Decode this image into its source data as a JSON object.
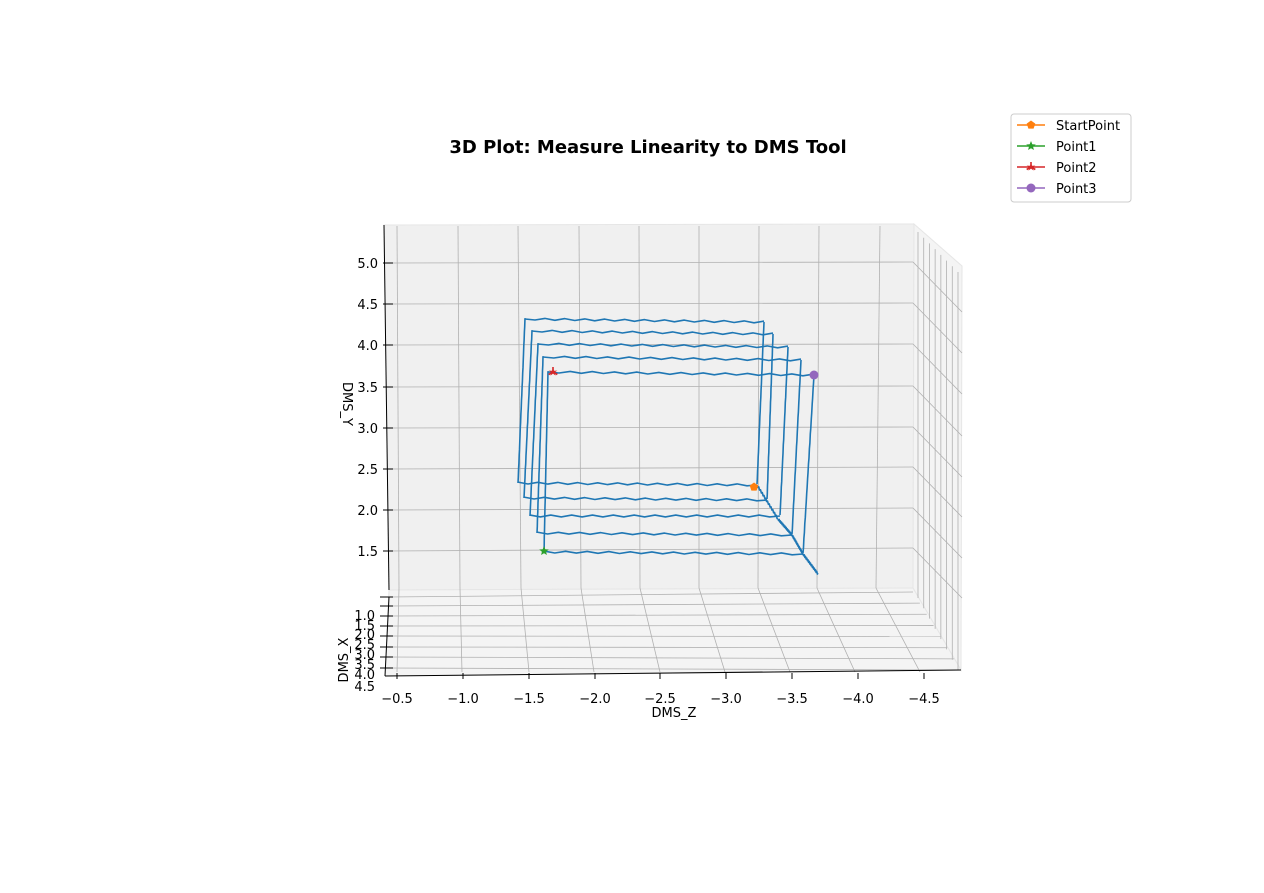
{
  "chart_data": {
    "type": "line-3d",
    "title": "3D Plot: Measure Linearity to DMS Tool",
    "xlabel": "DMS_Z",
    "ylabel": "DMS_Y",
    "zlabel": "DMS_X",
    "x_ticks": [
      "−0.5",
      "−1.0",
      "−1.5",
      "−2.0",
      "−2.5",
      "−3.0",
      "−3.5",
      "−4.0",
      "−4.5"
    ],
    "y_ticks": [
      "1.5",
      "2.0",
      "2.5",
      "3.0",
      "3.5",
      "4.0",
      "4.5",
      "5.0"
    ],
    "z_ticks": [
      "1.0",
      "1.5",
      "2.0",
      "2.5",
      "3.0",
      "3.5",
      "4.0",
      "4.5"
    ],
    "grid": true,
    "legend_position": "top-right",
    "legend": [
      {
        "label": "StartPoint",
        "color": "#ff7f0e",
        "marker": "pentagon"
      },
      {
        "label": "Point1",
        "color": "#2ca02c",
        "marker": "star"
      },
      {
        "label": "Point2",
        "color": "#d62728",
        "marker": "tri-star"
      },
      {
        "label": "Point3",
        "color": "#9467bd",
        "marker": "circle"
      }
    ],
    "trace_color": "#1f77b4"
  }
}
